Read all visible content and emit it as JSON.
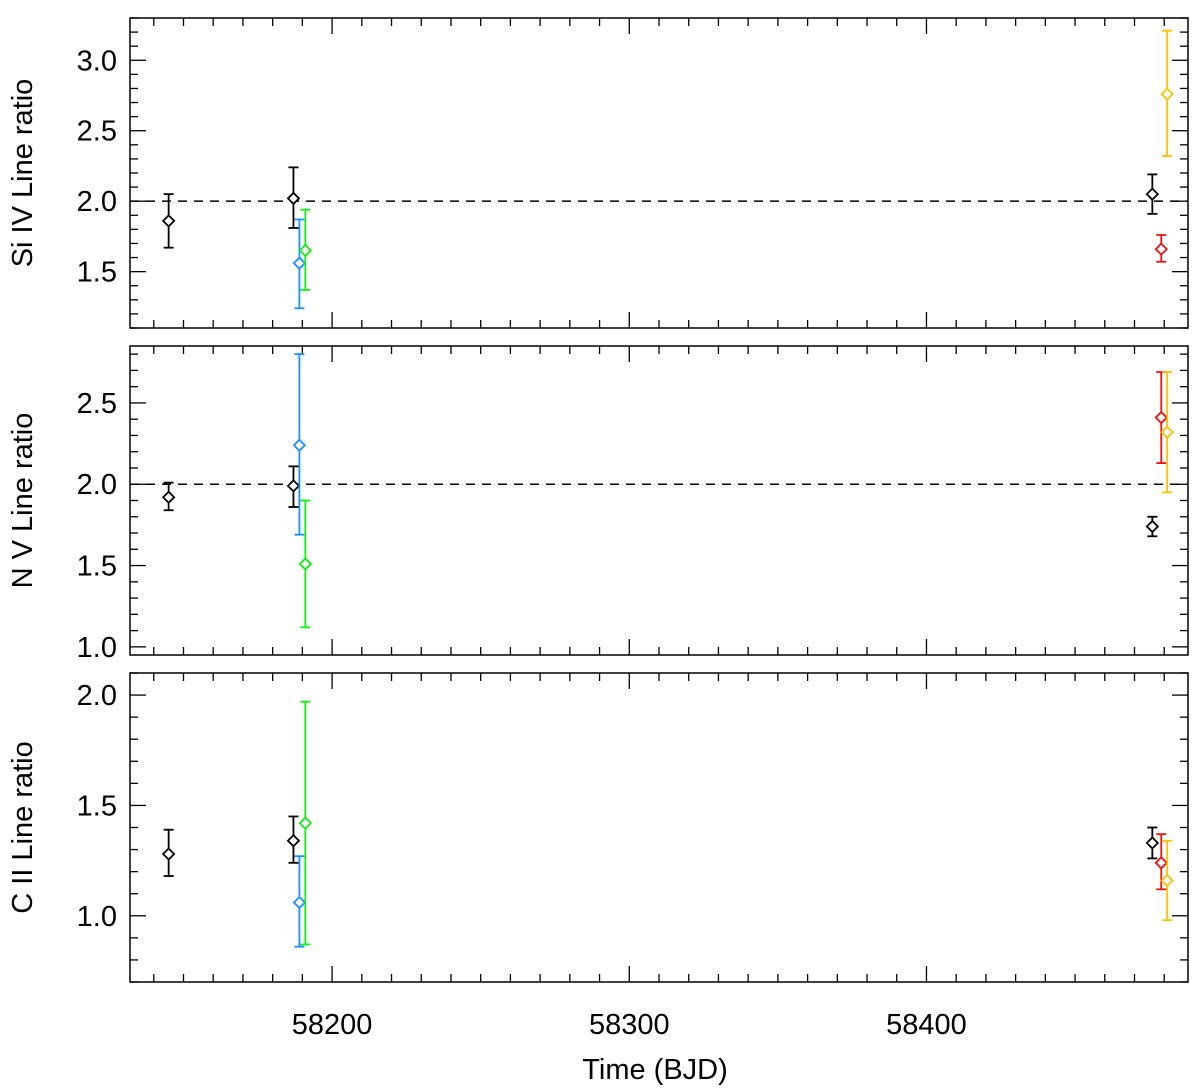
{
  "figure": {
    "xlabel": "Time (BJD)",
    "xlim": [
      58132,
      58488
    ],
    "x_ticks": [
      58200,
      58300,
      58400
    ],
    "x_minor_step": 10,
    "colors": {
      "black": "#000000",
      "blue": "#1a8fff",
      "green": "#11ee11",
      "red": "#ee1111",
      "orange": "#ffc000"
    }
  },
  "chart_data": [
    {
      "type": "scatter",
      "ylabel": "Si IV Line ratio",
      "ylim": [
        1.1,
        3.3
      ],
      "y_ticks": [
        1.5,
        2.0,
        2.5,
        3.0
      ],
      "y_tick_labels": [
        "1.5",
        "2.0",
        "2.5",
        "3.0"
      ],
      "y_minor_step": 0.1,
      "reference_line": 2.0,
      "points": [
        {
          "x": 58145,
          "y": 1.86,
          "lo": 1.67,
          "hi": 2.05,
          "color": "black"
        },
        {
          "x": 58187,
          "y": 2.02,
          "lo": 1.81,
          "hi": 2.24,
          "color": "black"
        },
        {
          "x": 58189,
          "y": 1.56,
          "lo": 1.24,
          "hi": 1.87,
          "color": "blue"
        },
        {
          "x": 58191,
          "y": 1.65,
          "lo": 1.37,
          "hi": 1.94,
          "color": "green"
        },
        {
          "x": 58476,
          "y": 2.05,
          "lo": 1.91,
          "hi": 2.19,
          "color": "black"
        },
        {
          "x": 58479,
          "y": 1.66,
          "lo": 1.57,
          "hi": 1.76,
          "color": "red"
        },
        {
          "x": 58481,
          "y": 2.76,
          "lo": 2.32,
          "hi": 3.21,
          "color": "orange"
        }
      ]
    },
    {
      "type": "scatter",
      "ylabel": "N V Line ratio",
      "ylim": [
        0.95,
        2.85
      ],
      "y_ticks": [
        1.0,
        1.5,
        2.0,
        2.5
      ],
      "y_tick_labels": [
        "1.0",
        "1.5",
        "2.0",
        "2.5"
      ],
      "y_minor_step": 0.1,
      "reference_line": 2.0,
      "points": [
        {
          "x": 58145,
          "y": 1.92,
          "lo": 1.84,
          "hi": 2.01,
          "color": "black"
        },
        {
          "x": 58187,
          "y": 1.99,
          "lo": 1.86,
          "hi": 2.11,
          "color": "black"
        },
        {
          "x": 58189,
          "y": 2.24,
          "lo": 1.69,
          "hi": 2.8,
          "color": "blue"
        },
        {
          "x": 58191,
          "y": 1.51,
          "lo": 1.12,
          "hi": 1.9,
          "color": "green"
        },
        {
          "x": 58476,
          "y": 1.74,
          "lo": 1.68,
          "hi": 1.8,
          "color": "black"
        },
        {
          "x": 58479,
          "y": 2.41,
          "lo": 2.13,
          "hi": 2.69,
          "color": "red"
        },
        {
          "x": 58481,
          "y": 2.32,
          "lo": 1.95,
          "hi": 2.69,
          "color": "orange"
        }
      ]
    },
    {
      "type": "scatter",
      "ylabel": "C II Line ratio",
      "ylim": [
        0.7,
        2.1
      ],
      "y_ticks": [
        1.0,
        1.5,
        2.0
      ],
      "y_tick_labels": [
        "1.0",
        "1.5",
        "2.0"
      ],
      "y_minor_step": 0.1,
      "reference_line": null,
      "points": [
        {
          "x": 58145,
          "y": 1.28,
          "lo": 1.18,
          "hi": 1.39,
          "color": "black"
        },
        {
          "x": 58187,
          "y": 1.34,
          "lo": 1.24,
          "hi": 1.45,
          "color": "black"
        },
        {
          "x": 58189,
          "y": 1.06,
          "lo": 0.86,
          "hi": 1.27,
          "color": "blue"
        },
        {
          "x": 58191,
          "y": 1.42,
          "lo": 0.87,
          "hi": 1.97,
          "color": "green"
        },
        {
          "x": 58476,
          "y": 1.33,
          "lo": 1.26,
          "hi": 1.4,
          "color": "black"
        },
        {
          "x": 58479,
          "y": 1.24,
          "lo": 1.12,
          "hi": 1.37,
          "color": "red"
        },
        {
          "x": 58481,
          "y": 1.16,
          "lo": 0.98,
          "hi": 1.34,
          "color": "orange"
        }
      ]
    }
  ]
}
